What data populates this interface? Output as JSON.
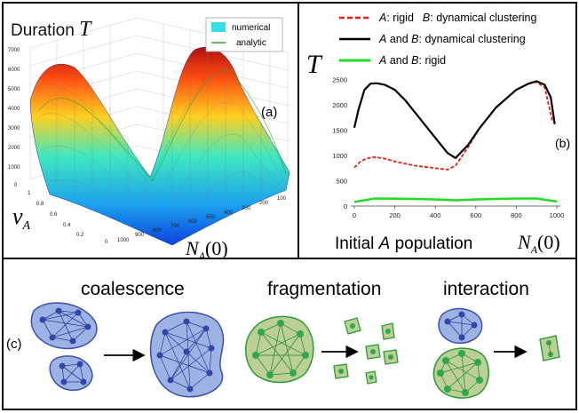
{
  "panel_a": {
    "title_word": "Duration",
    "title_symbol": "T",
    "label": "(a)",
    "legend": [
      "numerical",
      "analytic"
    ],
    "legend_colors": [
      "#33e0e8",
      "#22aa22"
    ],
    "z_ticks": [
      "7000",
      "6000",
      "5000",
      "4000",
      "3000",
      "2000",
      "1000",
      "0"
    ],
    "nu_ticks": [
      "1",
      "0.8",
      "0.6",
      "0.4",
      "0.2",
      "0"
    ],
    "n_ticks": [
      "1000",
      "900",
      "800",
      "700",
      "600",
      "500",
      "400",
      "300",
      "200",
      "100"
    ],
    "ylabel_symbol": "ν",
    "ylabel_sub": "A",
    "xlabel_symbol": "N",
    "xlabel_sub": "A",
    "xlabel_arg": "(0)"
  },
  "panel_b": {
    "label": "(b)",
    "ylabel": "T",
    "xlabel_word": "Initial",
    "xlabel_italic": "A",
    "xlabel_rest": "population",
    "xlabel_symbol": "N",
    "xlabel_sub": "A",
    "xlabel_arg": "(0)",
    "legend": [
      {
        "a": "A",
        "a_rest": ": rigid",
        "b": "B",
        "b_rest": ": dynamical clustering"
      },
      {
        "a": "A",
        "mid": " and ",
        "b": "B",
        "b_rest": ": dynamical clustering"
      },
      {
        "a": "A",
        "mid": " and ",
        "b": "B",
        "b_rest": ": rigid"
      }
    ]
  },
  "chart_data": {
    "type": "line",
    "xlim": [
      0,
      1000
    ],
    "ylim": [
      0,
      2600
    ],
    "x_ticks": [
      0,
      200,
      400,
      600,
      800,
      1000
    ],
    "y_ticks": [
      0,
      500,
      1000,
      1500,
      2000,
      2500
    ],
    "series": [
      {
        "name": "A: rigid   B: dynamical clustering",
        "color": "#e8201a",
        "dash": true,
        "x": [
          0,
          30,
          60,
          100,
          150,
          200,
          300,
          400,
          460,
          500,
          560,
          620,
          700,
          800,
          860,
          900,
          940,
          980
        ],
        "y": [
          760,
          880,
          940,
          970,
          940,
          880,
          800,
          750,
          720,
          800,
          1150,
          1550,
          1950,
          2300,
          2420,
          2450,
          2350,
          1650
        ]
      },
      {
        "name": "A and B: dynamical clustering",
        "color": "#000000",
        "dash": false,
        "x": [
          0,
          20,
          50,
          80,
          110,
          150,
          200,
          250,
          300,
          400,
          460,
          500,
          560,
          620,
          700,
          800,
          860,
          900,
          940,
          970,
          990
        ],
        "y": [
          1550,
          1900,
          2300,
          2420,
          2430,
          2400,
          2300,
          2100,
          1850,
          1350,
          1050,
          950,
          1200,
          1550,
          1950,
          2300,
          2420,
          2470,
          2400,
          2150,
          1620
        ]
      },
      {
        "name": "A and B: rigid",
        "color": "#22dd22",
        "dash": false,
        "x": [
          0,
          100,
          200,
          300,
          400,
          500,
          600,
          700,
          800,
          900,
          1000
        ],
        "y": [
          80,
          150,
          145,
          140,
          130,
          115,
          130,
          140,
          150,
          150,
          90
        ]
      }
    ]
  },
  "panel_c": {
    "label": "(c)",
    "titles": [
      "coalescence",
      "fragmentation",
      "interaction"
    ],
    "blue_fill": "#9db3e3",
    "blue_stroke": "#3b4fae",
    "green_fill": "#bccf94",
    "green_stroke": "#2a9d3a"
  }
}
